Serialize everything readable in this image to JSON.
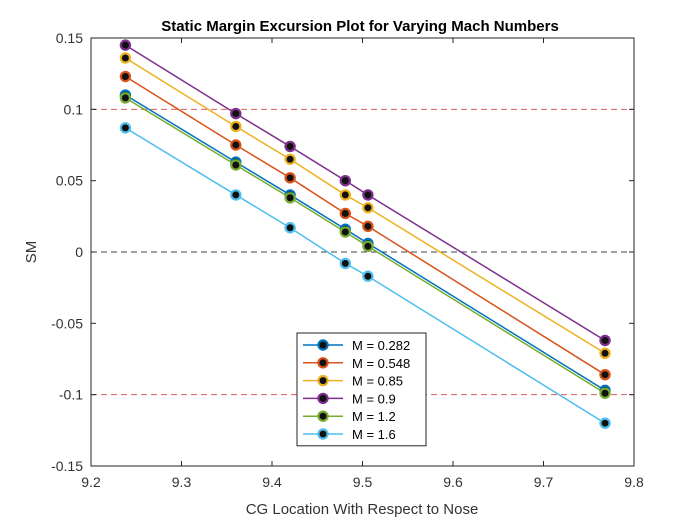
{
  "chart_data": {
    "type": "line",
    "title": "Static Margin Excursion Plot for Varying Mach Numbers",
    "xlabel": "CG Location With Respect to Nose",
    "ylabel": "SM",
    "xlim": [
      9.2,
      9.8
    ],
    "ylim": [
      -0.15,
      0.15
    ],
    "xticks": [
      "9.2",
      "9.3",
      "9.4",
      "9.5",
      "9.6",
      "9.7",
      "9.8"
    ],
    "yticks": [
      "-0.15",
      "-0.1",
      "-0.05",
      "0",
      "0.05",
      "0.1",
      "0.15"
    ],
    "x": [
      9.238,
      9.36,
      9.42,
      9.481,
      9.506,
      9.768
    ],
    "reference_lines": [
      {
        "y": 0.1,
        "color": "#d95f5f",
        "style": "dashed"
      },
      {
        "y": 0,
        "color": "#444444",
        "style": "dashed"
      },
      {
        "y": -0.1,
        "color": "#d95f5f",
        "style": "dashed"
      }
    ],
    "legend_position": "bottom-center",
    "series": [
      {
        "name": "M = 0.282",
        "color": "#0072BD",
        "values": [
          0.11,
          0.063,
          0.04,
          0.016,
          0.006,
          -0.097
        ]
      },
      {
        "name": "M = 0.548",
        "color": "#D95319",
        "values": [
          0.123,
          0.075,
          0.052,
          0.027,
          0.018,
          -0.086
        ]
      },
      {
        "name": "M = 0.85",
        "color": "#EDB120",
        "values": [
          0.136,
          0.088,
          0.065,
          0.04,
          0.031,
          -0.071
        ]
      },
      {
        "name": "M = 0.9",
        "color": "#7E2F8E",
        "values": [
          0.145,
          0.097,
          0.074,
          0.05,
          0.04,
          -0.062
        ]
      },
      {
        "name": "M = 1.2",
        "color": "#77AC30",
        "values": [
          0.108,
          0.061,
          0.038,
          0.014,
          0.004,
          -0.099
        ]
      },
      {
        "name": "M = 1.6",
        "color": "#4DBEEE",
        "values": [
          0.087,
          0.04,
          0.017,
          -0.008,
          -0.017,
          -0.12
        ]
      }
    ]
  }
}
